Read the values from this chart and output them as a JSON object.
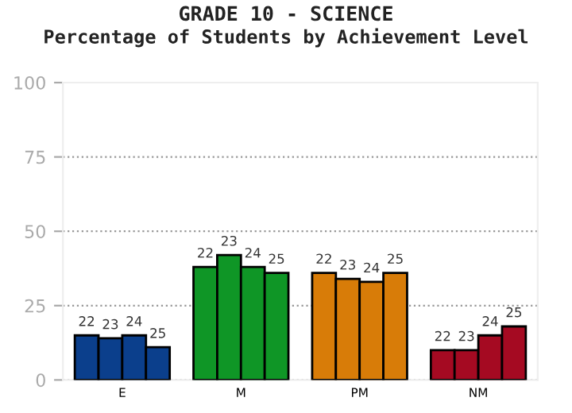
{
  "chart_data": {
    "type": "bar",
    "title": "GRADE 10 - SCIENCE",
    "subtitle": "Percentage of Students by Achievement Level",
    "categories": [
      "E",
      "M",
      "PM",
      "NM"
    ],
    "series": [
      {
        "name": "22",
        "colors": [
          "#0b3f8c",
          "#0f9626",
          "#d87c08",
          "#a50a22"
        ],
        "values": [
          15,
          38,
          36,
          10
        ]
      },
      {
        "name": "23",
        "colors": [
          "#0b3f8c",
          "#0f9626",
          "#d87c08",
          "#a50a22"
        ],
        "values": [
          14,
          42,
          34,
          10
        ]
      },
      {
        "name": "24",
        "colors": [
          "#0b3f8c",
          "#0f9626",
          "#d87c08",
          "#a50a22"
        ],
        "values": [
          15,
          38,
          33,
          15
        ]
      },
      {
        "name": "25",
        "colors": [
          "#0b3f8c",
          "#0f9626",
          "#d87c08",
          "#a50a22"
        ],
        "values": [
          11,
          36,
          36,
          18
        ]
      }
    ],
    "ylim": [
      0,
      100
    ],
    "yticks": [
      0,
      25,
      50,
      75,
      100
    ],
    "grid": "y",
    "legend": false
  }
}
